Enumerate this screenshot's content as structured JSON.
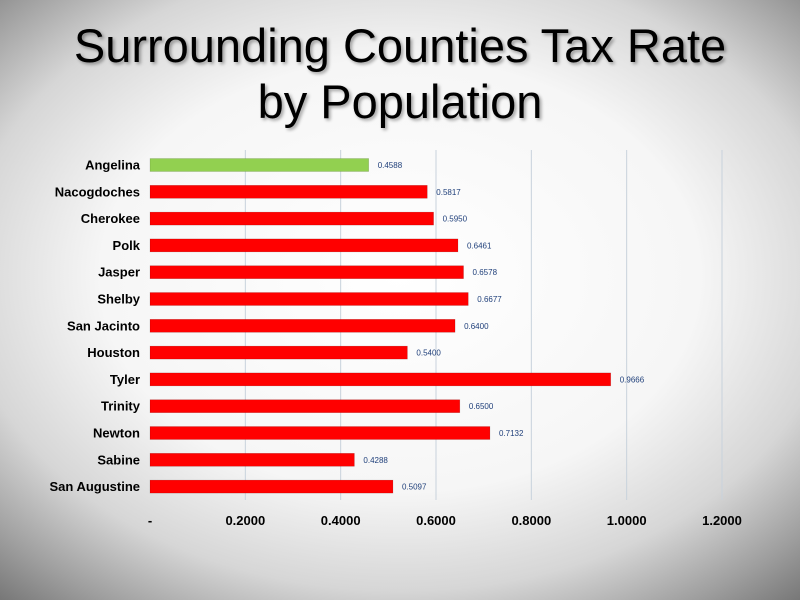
{
  "slide": {
    "title_line1": "Surrounding Counties Tax Rate",
    "title_line2": "by Population"
  },
  "chart_data": {
    "type": "bar",
    "orientation": "horizontal",
    "categories": [
      "Angelina",
      "Nacogdoches",
      "Cherokee",
      "Polk",
      "Jasper",
      "Shelby",
      "San Jacinto",
      "Houston",
      "Tyler",
      "Trinity",
      "Newton",
      "Sabine",
      "San Augustine"
    ],
    "values": [
      0.4588,
      0.5817,
      0.595,
      0.6461,
      0.6578,
      0.6677,
      0.64,
      0.54,
      0.9666,
      0.65,
      0.7132,
      0.4288,
      0.5097
    ],
    "data_labels": [
      "0.4588",
      "0.5817",
      "0.5950",
      "0.6461",
      "0.6578",
      "0.6677",
      "0.6400",
      "0.5400",
      "0.9666",
      "0.6500",
      "0.7132",
      "0.4288",
      "0.5097"
    ],
    "highlight_index": 0,
    "colors": {
      "highlight": "#92d050",
      "default": "#ff0000"
    },
    "xlim": [
      0,
      1.2
    ],
    "x_ticks": [
      0,
      0.2,
      0.4,
      0.6,
      0.8,
      1.0,
      1.2
    ],
    "x_tick_labels": [
      "-",
      "0.2000",
      "0.4000",
      "0.6000",
      "0.8000",
      "1.0000",
      "1.2000"
    ],
    "grid": true,
    "legend": "none",
    "title": "Surrounding Counties Tax Rate by Population",
    "xlabel": "",
    "ylabel": ""
  }
}
